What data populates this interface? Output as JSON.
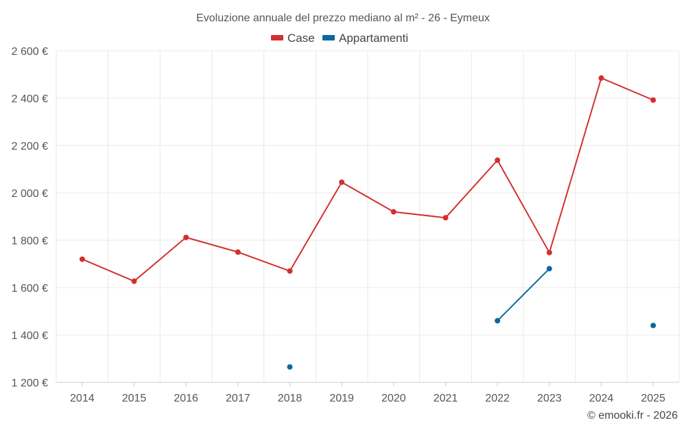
{
  "chart_data": {
    "type": "line",
    "title": "Evoluzione annuale del prezzo mediano al m² - 26 - Eymeux",
    "categories": [
      "2014",
      "2015",
      "2016",
      "2017",
      "2018",
      "2019",
      "2020",
      "2021",
      "2022",
      "2023",
      "2024",
      "2025"
    ],
    "ylim": [
      1200,
      2600
    ],
    "yticks": [
      1200,
      1400,
      1600,
      1800,
      2000,
      2200,
      2400,
      2600
    ],
    "ytick_labels": [
      "1 200 €",
      "1 400 €",
      "1 600 €",
      "1 800 €",
      "2 000 €",
      "2 200 €",
      "2 400 €",
      "2 600 €"
    ],
    "grid": true,
    "legend_position": "top-center",
    "series": [
      {
        "name": "Case",
        "color": "#d32f2f",
        "values": [
          1720,
          1627,
          1812,
          1750,
          1670,
          2045,
          1920,
          1895,
          2138,
          1748,
          2485,
          2392
        ]
      },
      {
        "name": "Appartamenti",
        "color": "#0a6a9b",
        "values": [
          null,
          null,
          null,
          null,
          1265,
          null,
          null,
          null,
          1460,
          1680,
          null,
          1440
        ]
      }
    ]
  },
  "credit": "© emooki.fr - 2026"
}
